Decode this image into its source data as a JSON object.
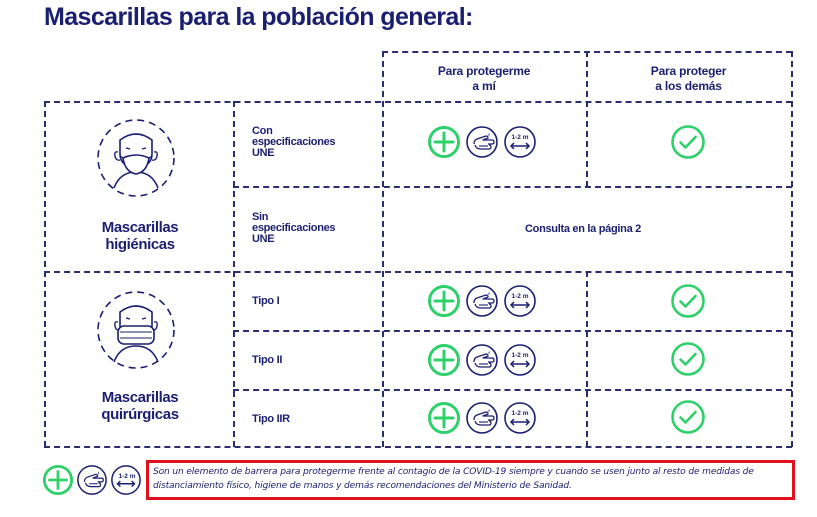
{
  "title": "Mascarillas para la población general:",
  "columns": {
    "self": "Para protegerme\na mí",
    "others": "Para proteger\na los demás"
  },
  "groups": {
    "higienicas": {
      "label": "Mascarillas\nhigiénicas",
      "rows": [
        {
          "label": "Con\nespecificaciones\nUNE"
        },
        {
          "label": "Sin\nespecificaciones\nUNE",
          "note": "Consulta en la página 2"
        }
      ]
    },
    "quirurgicas": {
      "label": "Mascarillas\nquirúrgicas",
      "rows": [
        {
          "label": "Tipo I"
        },
        {
          "label": "Tipo II"
        },
        {
          "label": "Tipo IIR"
        }
      ]
    }
  },
  "icons": {
    "plus": "plus-circle-icon",
    "hands": "hand-washing-icon",
    "distance": "distance-icon",
    "distance_label": "1-2 m",
    "check": "check-circle-icon"
  },
  "colors": {
    "green": "#2ed06a",
    "navy": "#1b1f6f",
    "red": "#e0101e"
  },
  "footnote": "Son un elemento de barrera para protegerme frente al contagio de la COVID-19 siempre y cuando se usen junto al resto de medidas de distanciamiento físico, higiene de manos y demás recomendaciones del Ministerio de Sanidad."
}
